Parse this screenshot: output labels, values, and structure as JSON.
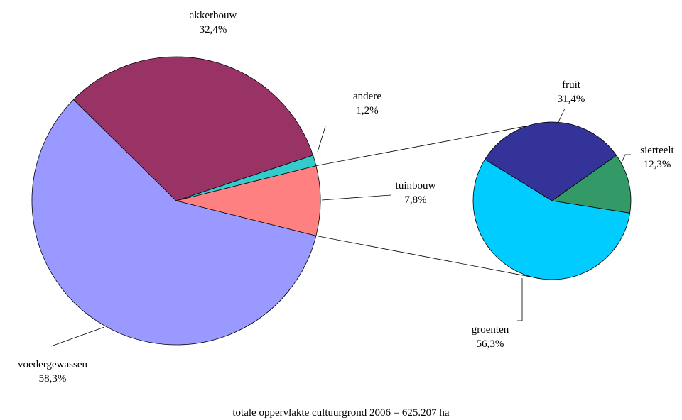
{
  "chart_data": [
    {
      "type": "pie",
      "title": "",
      "slices": [
        {
          "label": "akkerbouw",
          "value": 32.4,
          "display": "32,4%",
          "color": "#993366"
        },
        {
          "label": "andere",
          "value": 1.2,
          "display": "1,2%",
          "color": "#33CCCC"
        },
        {
          "label": "tuinbouw",
          "value": 7.8,
          "display": "7,8%",
          "color": "#FF8080"
        },
        {
          "label": "voedergewassen",
          "value": 58.3,
          "display": "58,3%",
          "color": "#9999FF"
        }
      ]
    },
    {
      "type": "pie",
      "title": "",
      "slices": [
        {
          "label": "fruit",
          "value": 31.4,
          "display": "31,4%",
          "color": "#333399"
        },
        {
          "label": "sierteelt",
          "value": 12.3,
          "display": "12,3%",
          "color": "#339966"
        },
        {
          "label": "groenten",
          "value": 56.3,
          "display": "56,3%",
          "color": "#00CCFF"
        }
      ]
    }
  ],
  "footnote": "totale oppervlakte cultuurgrond  2006 = 625.207 ha"
}
